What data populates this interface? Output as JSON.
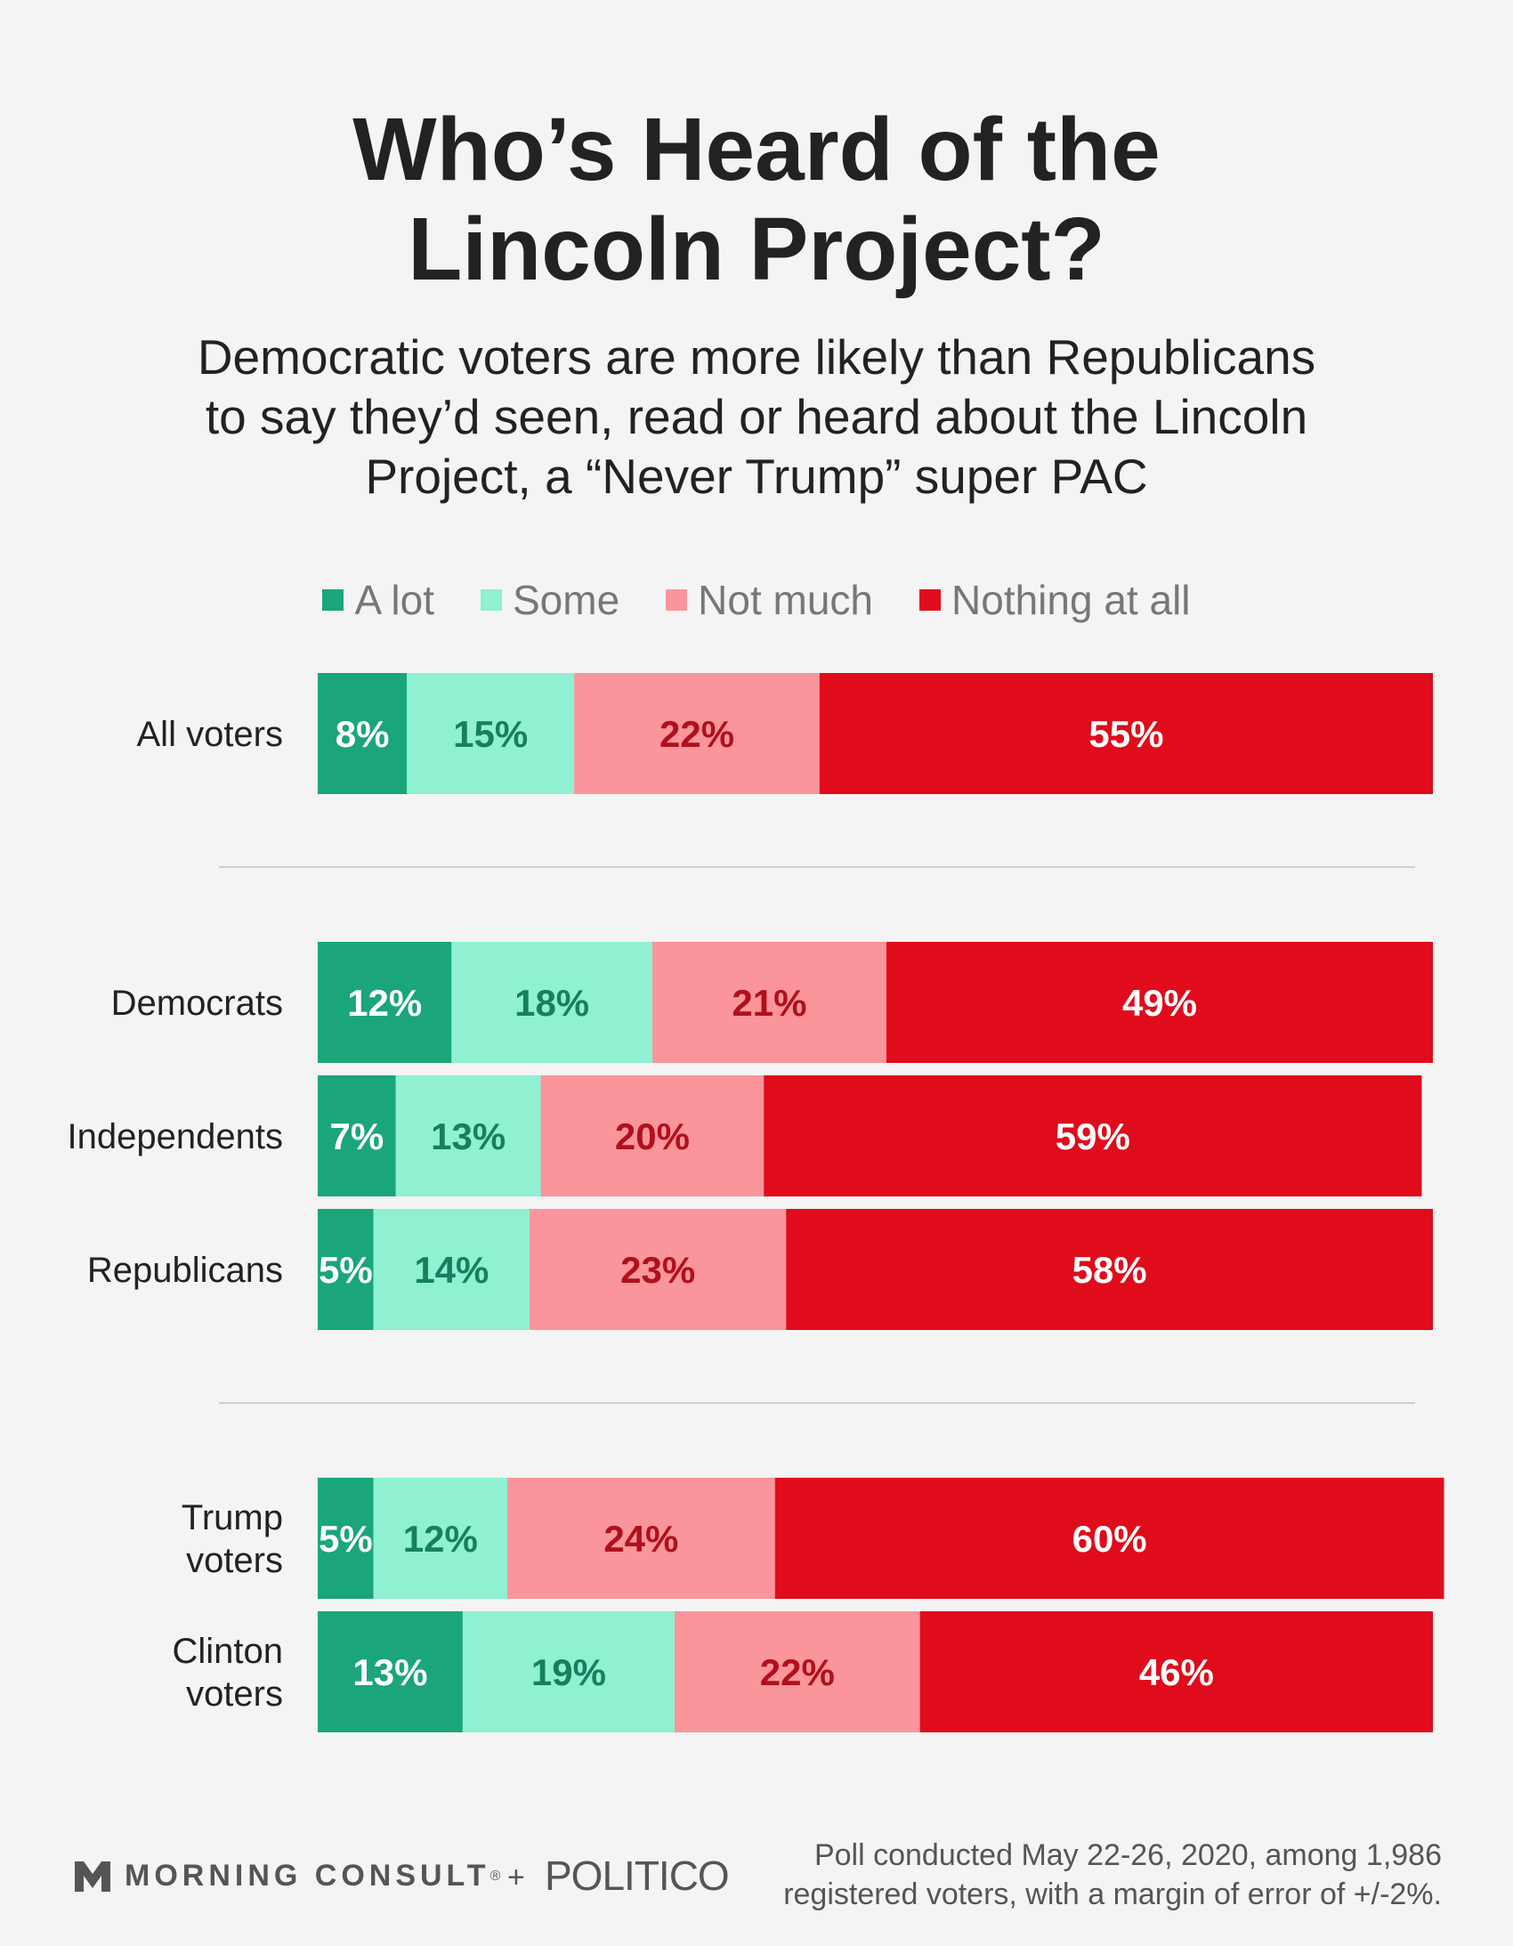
{
  "title": "Who’s Heard of the\nLincoln Project?",
  "subtitle": "Democratic voters are more likely than Republicans\nto say they’d seen, read or heard about the Lincoln\nProject, a “Never Trump” super PAC",
  "footer": {
    "note_line1": "Poll conducted May 22-26, 2020, among 1,986",
    "note_line2": "registered voters, with a margin of error of +/-2%.",
    "logo_mc": "MORNING CONSULT",
    "logo_mc_mark": "®",
    "logo_plus": "+",
    "logo_politico": "POLITICO"
  },
  "chart_data": {
    "type": "bar",
    "orientation": "horizontal",
    "stacked": true,
    "legend_position": "top",
    "grid": false,
    "value_suffix": "%",
    "series": [
      {
        "name": "A lot",
        "color": "#1aa57a",
        "label_color": "#ffffff"
      },
      {
        "name": "Some",
        "color": "#8ff0d2",
        "label_color": "#16805e"
      },
      {
        "name": "Not much",
        "color": "#f9959b",
        "label_color": "#b0101c"
      },
      {
        "name": "Nothing at all",
        "color": "#e00b1b",
        "label_color": "#ffffff"
      }
    ],
    "groups": [
      {
        "categories": [
          {
            "label": "All voters",
            "values": [
              8,
              15,
              22,
              55
            ]
          }
        ]
      },
      {
        "categories": [
          {
            "label": "Democrats",
            "values": [
              12,
              18,
              21,
              49
            ]
          },
          {
            "label": "Independents",
            "values": [
              7,
              13,
              20,
              59
            ]
          },
          {
            "label": "Republicans",
            "values": [
              5,
              14,
              23,
              58
            ]
          }
        ]
      },
      {
        "categories": [
          {
            "label": "Trump\nvoters",
            "values": [
              5,
              12,
              24,
              60
            ]
          },
          {
            "label": "Clinton\nvoters",
            "values": [
              13,
              19,
              22,
              46
            ]
          }
        ]
      }
    ]
  }
}
